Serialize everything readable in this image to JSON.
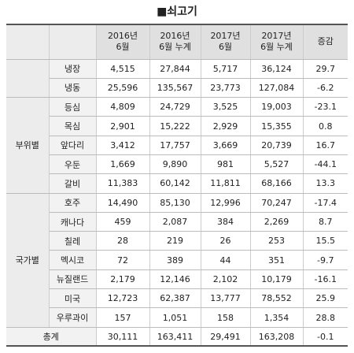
{
  "title": "■쇠고기",
  "header": [
    "2016년\n6월",
    "2016년\n6월 누계",
    "2017년\n6월",
    "2017년\n6월 누계",
    "증감"
  ],
  "sections": [
    {
      "rows": [
        {
          "name": "냉장",
          "cells": [
            "4,515",
            "27,844",
            "5,717",
            "36,124",
            "29.7"
          ]
        },
        {
          "name": "냉동",
          "cells": [
            "25,596",
            "135,567",
            "23,773",
            "127,084",
            "-6.2"
          ]
        }
      ]
    },
    {
      "label": "부위별",
      "rows": [
        {
          "name": "등심",
          "cells": [
            "4,809",
            "24,729",
            "3,525",
            "19,003",
            "-23.1"
          ]
        },
        {
          "name": "목심",
          "cells": [
            "2,901",
            "15,222",
            "2,929",
            "15,355",
            "0.8"
          ]
        },
        {
          "name": "앞다리",
          "cells": [
            "3,412",
            "17,757",
            "3,669",
            "20,739",
            "16.7"
          ]
        },
        {
          "name": "우둔",
          "cells": [
            "1,669",
            "9,890",
            "981",
            "5,527",
            "-44.1"
          ]
        },
        {
          "name": "갈비",
          "cells": [
            "11,383",
            "60,142",
            "11,811",
            "68,166",
            "13.3"
          ]
        }
      ]
    },
    {
      "label": "국가별",
      "rows": [
        {
          "name": "호주",
          "cells": [
            "14,490",
            "85,130",
            "12,996",
            "70,247",
            "-17.4"
          ]
        },
        {
          "name": "캐나다",
          "cells": [
            "459",
            "2,087",
            "384",
            "2,269",
            "8.7"
          ]
        },
        {
          "name": "칠레",
          "cells": [
            "28",
            "219",
            "26",
            "253",
            "15.5"
          ]
        },
        {
          "name": "멕시코",
          "cells": [
            "72",
            "389",
            "44",
            "351",
            "-9.7"
          ]
        },
        {
          "name": "뉴질랜드",
          "cells": [
            "2,179",
            "12,146",
            "2,102",
            "10,179",
            "-16.1"
          ]
        },
        {
          "name": "미국",
          "cells": [
            "12,723",
            "62,387",
            "13,777",
            "78,552",
            "25.9"
          ]
        },
        {
          "name": "우루과이",
          "cells": [
            "157",
            "1,051",
            "158",
            "1,354",
            "28.8"
          ]
        }
      ]
    }
  ],
  "total": {
    "name": "총계",
    "cells": [
      "30,111",
      "163,411",
      "29,491",
      "163,208",
      "-0.1"
    ]
  }
}
